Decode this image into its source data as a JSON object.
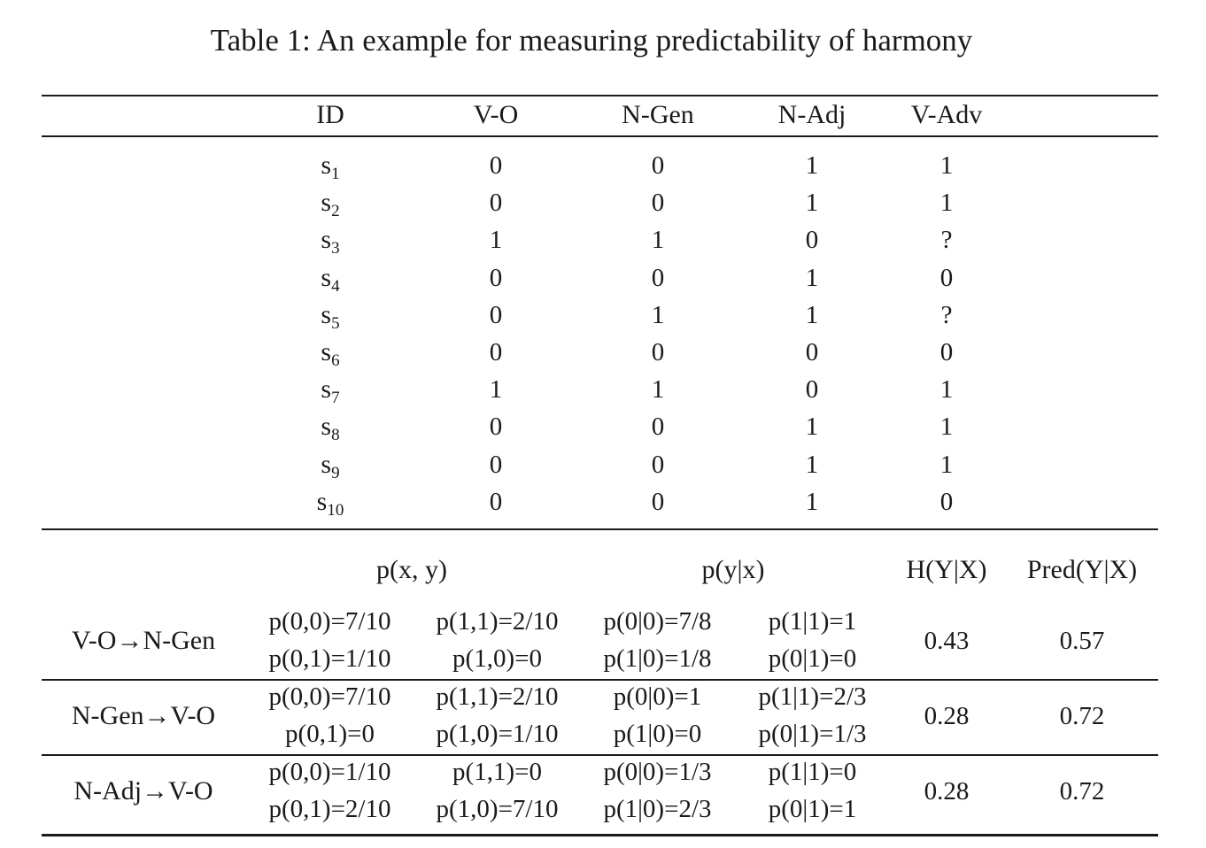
{
  "caption": "Table 1: An example for measuring predictability of harmony",
  "table1": {
    "headers": [
      "ID",
      "V-O",
      "N-Gen",
      "N-Adj",
      "V-Adv"
    ],
    "rows": [
      {
        "id": "s",
        "sub": "1",
        "vo": "0",
        "ngen": "0",
        "nadj": "1",
        "vadv": "1"
      },
      {
        "id": "s",
        "sub": "2",
        "vo": "0",
        "ngen": "0",
        "nadj": "1",
        "vadv": "1"
      },
      {
        "id": "s",
        "sub": "3",
        "vo": "1",
        "ngen": "1",
        "nadj": "0",
        "vadv": "?"
      },
      {
        "id": "s",
        "sub": "4",
        "vo": "0",
        "ngen": "0",
        "nadj": "1",
        "vadv": "0"
      },
      {
        "id": "s",
        "sub": "5",
        "vo": "0",
        "ngen": "1",
        "nadj": "1",
        "vadv": "?"
      },
      {
        "id": "s",
        "sub": "6",
        "vo": "0",
        "ngen": "0",
        "nadj": "0",
        "vadv": "0"
      },
      {
        "id": "s",
        "sub": "7",
        "vo": "1",
        "ngen": "1",
        "nadj": "0",
        "vadv": "1"
      },
      {
        "id": "s",
        "sub": "8",
        "vo": "0",
        "ngen": "0",
        "nadj": "1",
        "vadv": "1"
      },
      {
        "id": "s",
        "sub": "9",
        "vo": "0",
        "ngen": "0",
        "nadj": "1",
        "vadv": "1"
      },
      {
        "id": "s",
        "sub": "10",
        "vo": "0",
        "ngen": "0",
        "nadj": "1",
        "vadv": "0"
      }
    ]
  },
  "table2": {
    "headers": {
      "joint": "p(x, y)",
      "cond": "p(y|x)",
      "entropy": "H(Y|X)",
      "pred": "Pred(Y|X)"
    },
    "rows": [
      {
        "label": "V-O→N-Gen",
        "joint_a": [
          "p(0,0)=7/10",
          "p(0,1)=1/10"
        ],
        "joint_b": [
          "p(1,1)=2/10",
          "p(1,0)=0"
        ],
        "cond_a": [
          "p(0|0)=7/8",
          "p(1|0)=1/8"
        ],
        "cond_b": [
          "p(1|1)=1",
          "p(0|1)=0"
        ],
        "entropy": "0.43",
        "pred": "0.57"
      },
      {
        "label": "N-Gen→V-O",
        "joint_a": [
          "p(0,0)=7/10",
          "p(0,1)=0"
        ],
        "joint_b": [
          "p(1,1)=2/10",
          "p(1,0)=1/10"
        ],
        "cond_a": [
          "p(0|0)=1",
          "p(1|0)=0"
        ],
        "cond_b": [
          "p(1|1)=2/3",
          "p(0|1)=1/3"
        ],
        "entropy": "0.28",
        "pred": "0.72"
      },
      {
        "label": "N-Adj→V-O",
        "joint_a": [
          "p(0,0)=1/10",
          "p(0,1)=2/10"
        ],
        "joint_b": [
          "p(1,1)=0",
          "p(1,0)=7/10"
        ],
        "cond_a": [
          "p(0|0)=1/3",
          "p(1|0)=2/3"
        ],
        "cond_b": [
          "p(1|1)=0",
          "p(0|1)=1"
        ],
        "entropy": "0.28",
        "pred": "0.72"
      }
    ]
  }
}
